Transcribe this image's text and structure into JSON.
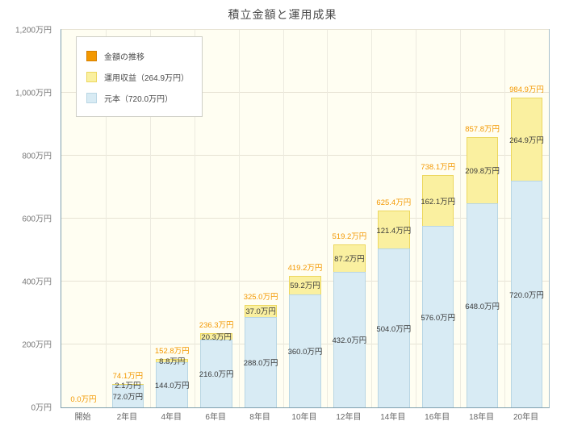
{
  "title": "積立金額と運用成果",
  "legend": [
    {
      "label": "金額の推移"
    },
    {
      "label": "運用収益（264.9万円）"
    },
    {
      "label": "元本（720.0万円）"
    }
  ],
  "colors": {
    "total_accent": "#f39800",
    "returns_fill": "#faf0a0",
    "returns_border": "#ecd75e",
    "principal_fill": "#d8ebf4",
    "principal_border": "#b9d6e4",
    "plot_background": "#fffef2",
    "gridline": "#e7e3d4",
    "axis": "#7fa0ae"
  },
  "chart_data": {
    "type": "bar",
    "stacked": true,
    "title": "積立金額と運用成果",
    "categories": [
      "開始",
      "2年目",
      "4年目",
      "6年目",
      "8年目",
      "10年目",
      "12年目",
      "14年目",
      "16年目",
      "18年目",
      "20年目"
    ],
    "series": [
      {
        "name": "元本",
        "values": [
          0,
          72.0,
          144.0,
          216.0,
          288.0,
          360.0,
          432.0,
          504.0,
          576.0,
          648.0,
          720.0
        ]
      },
      {
        "name": "運用収益",
        "values": [
          0,
          2.1,
          8.8,
          20.3,
          37.0,
          59.2,
          87.2,
          121.4,
          162.1,
          209.8,
          264.9
        ]
      }
    ],
    "totals": [
      0.0,
      74.1,
      152.8,
      236.3,
      325.0,
      419.2,
      519.2,
      625.4,
      738.1,
      857.8,
      984.9
    ],
    "total_labels": [
      "0.0万円",
      "74.1万円",
      "152.8万円",
      "236.3万円",
      "325.0万円",
      "419.2万円",
      "519.2万円",
      "625.4万円",
      "738.1万円",
      "857.8万円",
      "984.9万円"
    ],
    "principal_labels": [
      "",
      "72.0万円",
      "144.0万円",
      "216.0万円",
      "288.0万円",
      "360.0万円",
      "432.0万円",
      "504.0万円",
      "576.0万円",
      "648.0万円",
      "720.0万円"
    ],
    "returns_labels": [
      "",
      "2.1万円",
      "8.8万円",
      "20.3万円",
      "37.0万円",
      "59.2万円",
      "87.2万円",
      "121.4万円",
      "162.1万円",
      "209.8万円",
      "264.9万円"
    ],
    "ylim": [
      0,
      1200
    ],
    "ytick_values": [
      0,
      200,
      400,
      600,
      800,
      1000,
      1200
    ],
    "yticks": [
      "0万円",
      "200万円",
      "400万円",
      "600万円",
      "800万円",
      "1,000万円",
      "1,200万円"
    ],
    "unit": "万円",
    "grid": true,
    "legend_position": "upper-left"
  }
}
